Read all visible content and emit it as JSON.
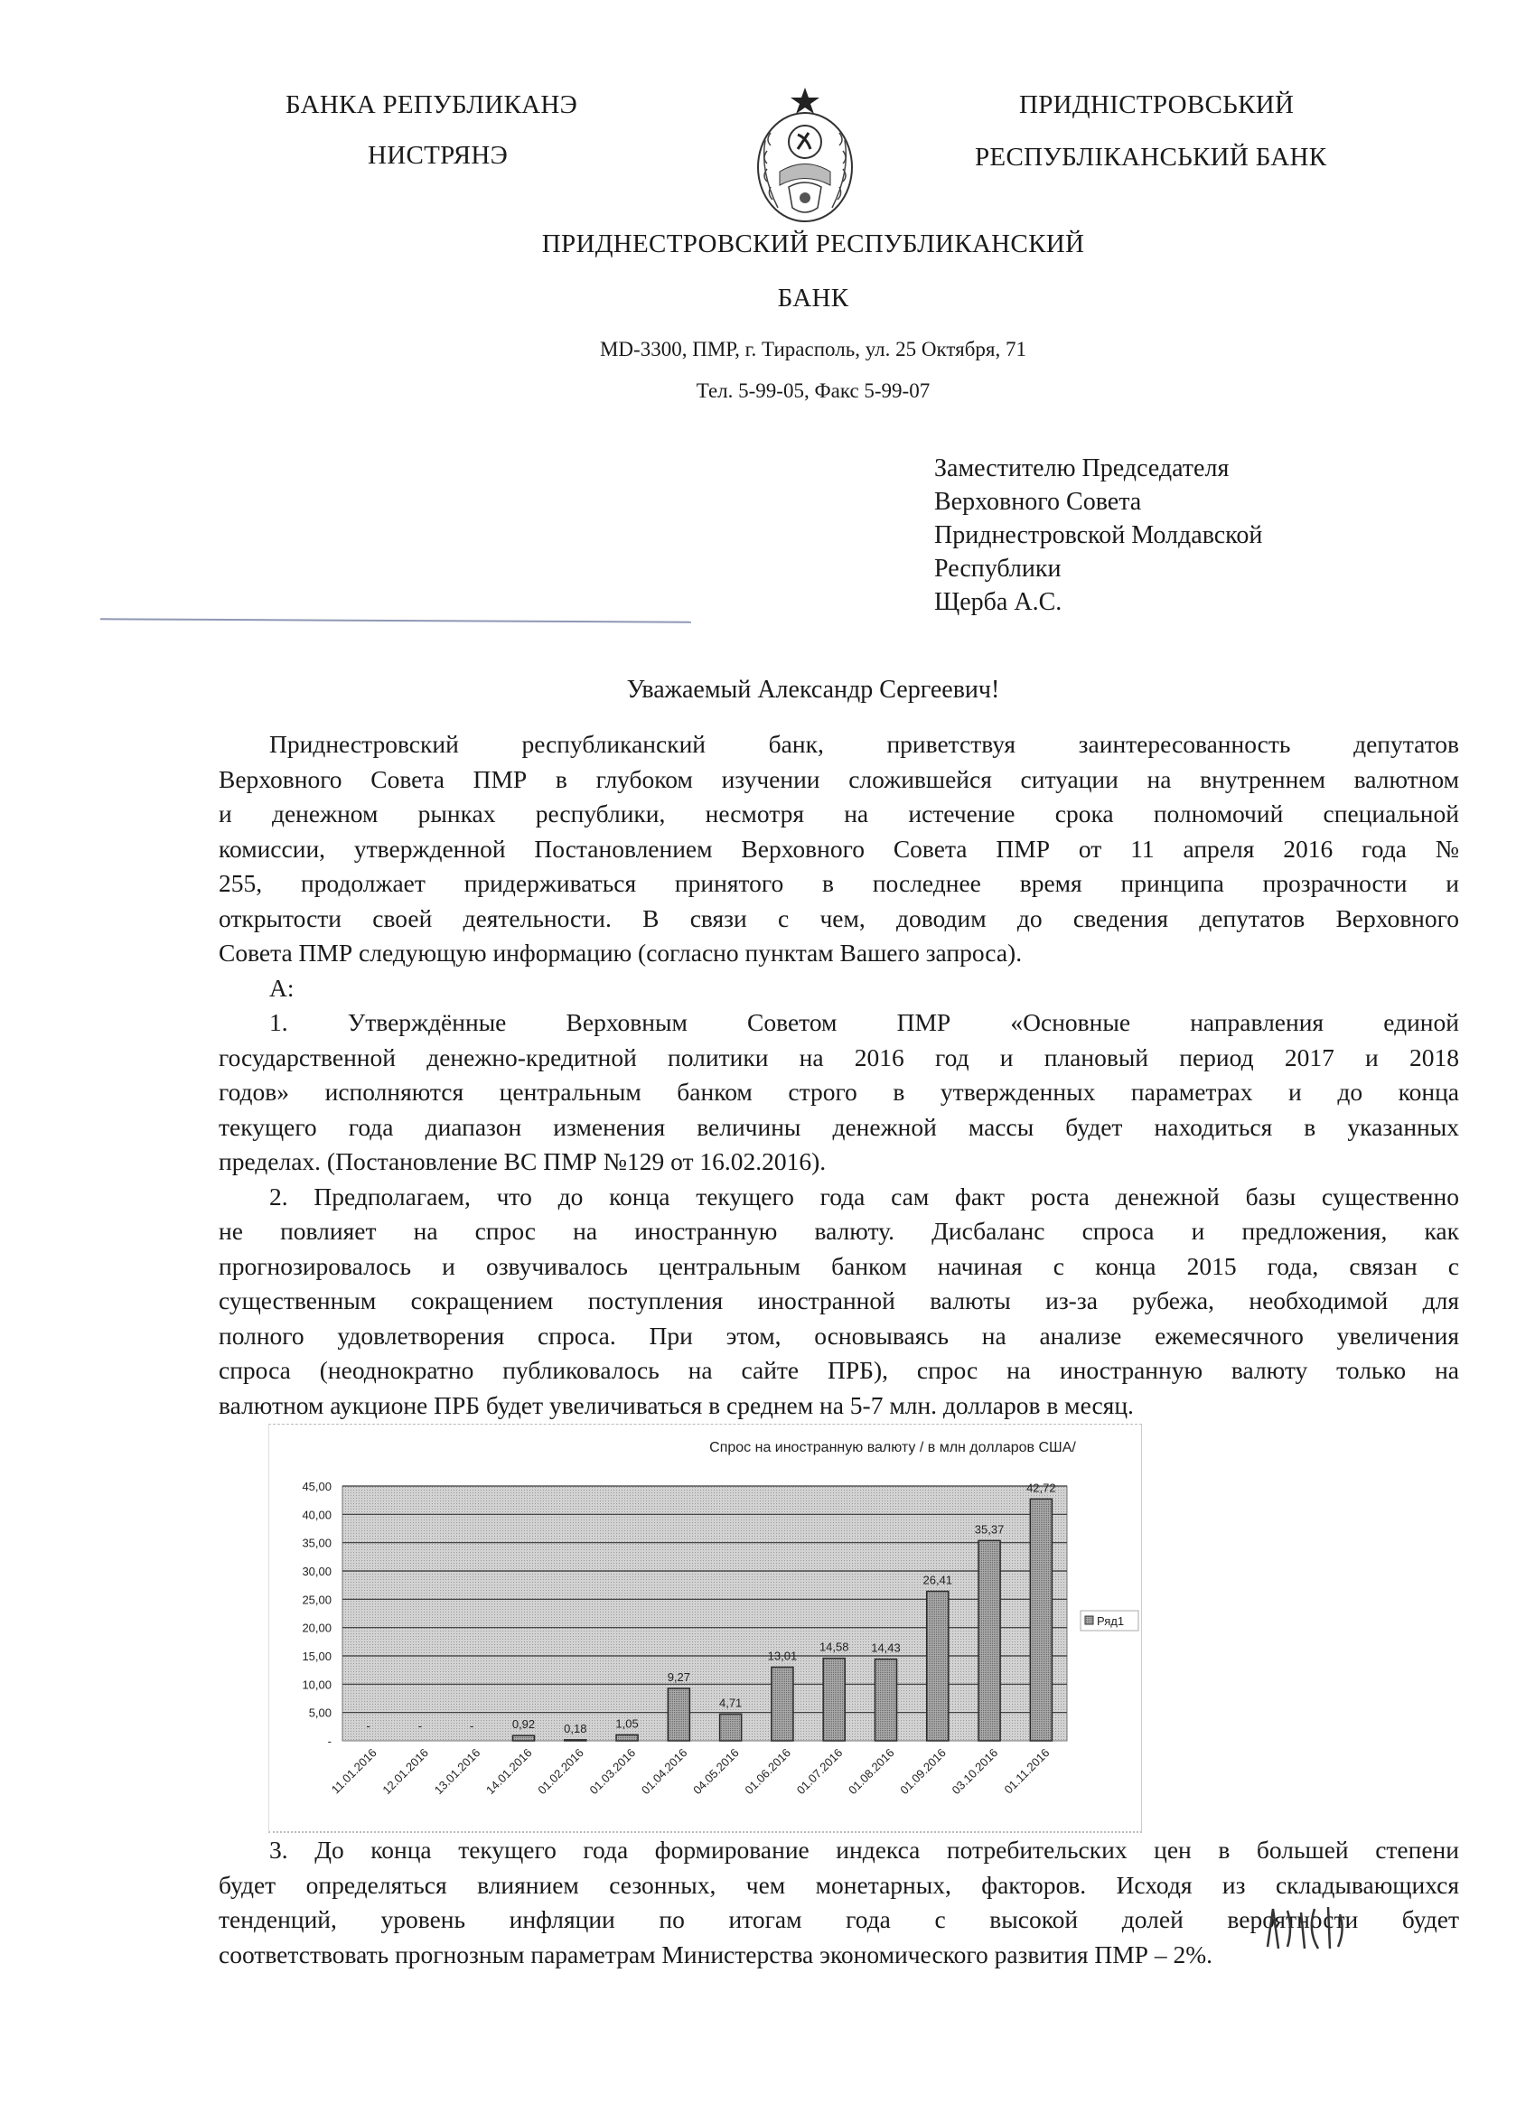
{
  "letterhead": {
    "left_line1": "БАНКА РЕПУБЛИКАНЭ",
    "left_line2": "НИСТРЯНЭ",
    "right_line1": "ПРИДНІСТРОВСЬКИЙ",
    "right_line2": "РЕСПУБЛІКАНСЬКИЙ БАНК",
    "title_line1": "ПРИДНЕСТРОВСКИЙ РЕСПУБЛИКАНСКИЙ",
    "title_line2": "БАНК",
    "address": "MD-3300, ПМР, г. Тирасполь, ул. 25 Октября, 71",
    "phone": "Тел. 5-99-05, Факс 5-99-07",
    "emblem": "coat-of-arms-emblem"
  },
  "addressee": [
    "Заместителю Председателя",
    "Верховного Совета",
    "Приднестровской Молдавской",
    "Республики",
    "Щерба А.С."
  ],
  "salutation": "Уважаемый Александр Сергеевич!",
  "paragraphs_top": [
    {
      "lines": [
        "Приднестровский республиканский банк, приветствуя заинтересованность депутатов",
        "Верховного Совета ПМР в глубоком изучении сложившейся ситуации на внутреннем валютном",
        "и денежном рынках республики, несмотря на истечение срока полномочий специальной",
        "комиссии, утвержденной Постановлением Верховного Совета ПМР от 11 апреля 2016 года №",
        "255, продолжает придерживаться принятого в последнее время принципа прозрачности и",
        "открытости своей деятельности. В связи с чем, доводим до сведения депутатов Верховного",
        "Совета ПМР следующую информацию (согласно пунктам Вашего запроса)."
      ]
    },
    {
      "lines": [
        "А:"
      ]
    },
    {
      "lines": [
        "1. Утверждённые Верховным Советом ПМР «Основные направления единой",
        "государственной денежно-кредитной политики на 2016 год и плановый период 2017 и 2018",
        "годов» исполняются центральным банком строго в утвержденных параметрах и до конца",
        "текущего года диапазон изменения величины денежной массы будет находиться в указанных",
        "пределах. (Постановление ВС ПМР №129 от 16.02.2016)."
      ]
    },
    {
      "lines": [
        "2. Предполагаем, что до конца текущего года сам факт роста денежной базы существенно",
        "не повлияет на спрос на иностранную валюту. Дисбаланс спроса и предложения, как",
        "прогнозировалось и озвучивалось центральным банком начиная с конца 2015 года, связан с",
        "существенным сокращением поступления иностранной валюты из-за рубежа, необходимой для",
        "полного удовлетворения спроса. При этом, основываясь на анализе ежемесячного увеличения",
        "спроса (неоднократно публиковалось на сайте ПРБ), спрос на иностранную валюту только на",
        "валютном аукционе ПРБ будет увеличиваться в среднем на 5-7 млн. долларов в месяц."
      ]
    }
  ],
  "paragraphs_bottom": [
    {
      "lines": [
        "3. До конца текущего года формирование индекса потребительских цен в большей степени",
        "будет определяться влиянием сезонных, чем монетарных, факторов. Исходя из складывающихся",
        "тенденций, уровень инфляции по итогам года с высокой долей вероятности будет",
        "соответствовать прогнозным параметрам Министерства экономического развития ПМР – 2%."
      ]
    }
  ],
  "chart_data": {
    "type": "bar",
    "title": "Спрос на иностранную валюту   / в млн долларов США/",
    "categories": [
      "11.01.2016",
      "12.01.2016",
      "13.01.2016",
      "14.01.2016",
      "01.02.2016",
      "01.03.2016",
      "01.04.2016",
      "04.05.2016",
      "01.06.2016",
      "01.07.2016",
      "01.08.2016",
      "01.09.2016",
      "03.10.2016",
      "01.11.2016"
    ],
    "series": [
      {
        "name": "Ряд1",
        "values": [
          null,
          null,
          null,
          0.92,
          0.18,
          1.05,
          9.27,
          4.71,
          13.01,
          14.58,
          14.43,
          26.41,
          35.37,
          42.72
        ]
      }
    ],
    "data_labels": [
      "-",
      "-",
      "-",
      "0,92",
      "0,18",
      "1,05",
      "9,27",
      "4,71",
      "13,01",
      "14,58",
      "14,43",
      "26,41",
      "35,37",
      "42,72"
    ],
    "yticks": [
      "-",
      "5,00",
      "10,00",
      "15,00",
      "20,00",
      "25,00",
      "30,00",
      "35,00",
      "40,00",
      "45,00"
    ],
    "ylim": [
      0,
      45
    ],
    "grid": true,
    "legend": "right",
    "colors": {
      "plot_bg": "#c9c9c9",
      "bar": "#9a9a9a",
      "bar_edge": "#2a2a2a"
    }
  }
}
